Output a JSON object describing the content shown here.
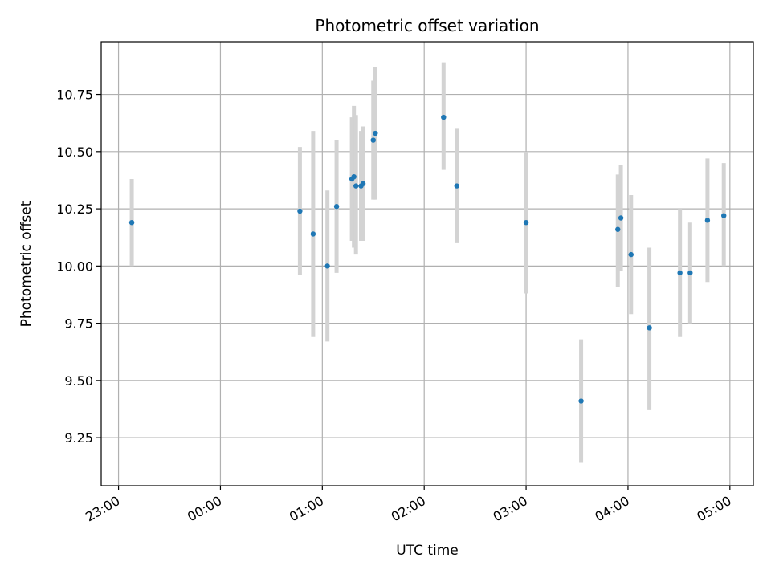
{
  "chart_data": {
    "type": "scatter",
    "title": "Photometric offset variation",
    "xlabel": "UTC time",
    "ylabel": "Photometric offset",
    "grid": true,
    "x_unit": "hours since 23:00 UTC",
    "xlim": [
      -0.17,
      6.23
    ],
    "ylim": [
      9.04,
      10.98
    ],
    "x_ticks": [
      {
        "x": 0,
        "label": "23:00"
      },
      {
        "x": 1,
        "label": "00:00"
      },
      {
        "x": 2,
        "label": "01:00"
      },
      {
        "x": 3,
        "label": "02:00"
      },
      {
        "x": 4,
        "label": "03:00"
      },
      {
        "x": 5,
        "label": "04:00"
      },
      {
        "x": 6,
        "label": "05:00"
      }
    ],
    "y_ticks": [
      {
        "y": 9.25,
        "label": "9.25"
      },
      {
        "y": 9.5,
        "label": "9.50"
      },
      {
        "y": 9.75,
        "label": "9.75"
      },
      {
        "y": 10.0,
        "label": "10.00"
      },
      {
        "y": 10.25,
        "label": "10.25"
      },
      {
        "y": 10.5,
        "label": "10.50"
      },
      {
        "y": 10.75,
        "label": "10.75"
      }
    ],
    "colors": {
      "point": "#1f77b4",
      "errorbar": "#d3d3d3",
      "grid": "#b0b0b0",
      "axes": "#000000"
    },
    "series": [
      {
        "name": "offset",
        "points": [
          {
            "x": 0.13,
            "y": 10.19,
            "ylo": 10.0,
            "yhi": 10.38
          },
          {
            "x": 1.78,
            "y": 10.24,
            "ylo": 9.96,
            "yhi": 10.52
          },
          {
            "x": 1.91,
            "y": 10.14,
            "ylo": 9.69,
            "yhi": 10.59
          },
          {
            "x": 2.05,
            "y": 10.0,
            "ylo": 9.67,
            "yhi": 10.33
          },
          {
            "x": 2.14,
            "y": 10.26,
            "ylo": 9.97,
            "yhi": 10.55
          },
          {
            "x": 2.29,
            "y": 10.38,
            "ylo": 10.11,
            "yhi": 10.65
          },
          {
            "x": 2.31,
            "y": 10.39,
            "ylo": 10.08,
            "yhi": 10.7
          },
          {
            "x": 2.33,
            "y": 10.35,
            "ylo": 10.05,
            "yhi": 10.66
          },
          {
            "x": 2.38,
            "y": 10.35,
            "ylo": 10.11,
            "yhi": 10.59
          },
          {
            "x": 2.4,
            "y": 10.36,
            "ylo": 10.11,
            "yhi": 10.61
          },
          {
            "x": 2.5,
            "y": 10.55,
            "ylo": 10.29,
            "yhi": 10.81
          },
          {
            "x": 2.52,
            "y": 10.58,
            "ylo": 10.29,
            "yhi": 10.87
          },
          {
            "x": 3.19,
            "y": 10.65,
            "ylo": 10.42,
            "yhi": 10.89
          },
          {
            "x": 3.32,
            "y": 10.35,
            "ylo": 10.1,
            "yhi": 10.6
          },
          {
            "x": 4.0,
            "y": 10.19,
            "ylo": 9.88,
            "yhi": 10.5
          },
          {
            "x": 4.54,
            "y": 9.41,
            "ylo": 9.14,
            "yhi": 9.68
          },
          {
            "x": 4.9,
            "y": 10.16,
            "ylo": 9.91,
            "yhi": 10.4
          },
          {
            "x": 4.93,
            "y": 10.21,
            "ylo": 9.98,
            "yhi": 10.44
          },
          {
            "x": 5.03,
            "y": 10.05,
            "ylo": 9.79,
            "yhi": 10.31
          },
          {
            "x": 5.21,
            "y": 9.73,
            "ylo": 9.37,
            "yhi": 10.08
          },
          {
            "x": 5.51,
            "y": 9.97,
            "ylo": 9.69,
            "yhi": 10.25
          },
          {
            "x": 5.61,
            "y": 9.97,
            "ylo": 9.75,
            "yhi": 10.19
          },
          {
            "x": 5.78,
            "y": 10.2,
            "ylo": 9.93,
            "yhi": 10.47
          },
          {
            "x": 5.94,
            "y": 10.22,
            "ylo": 10.0,
            "yhi": 10.45
          }
        ]
      }
    ]
  }
}
